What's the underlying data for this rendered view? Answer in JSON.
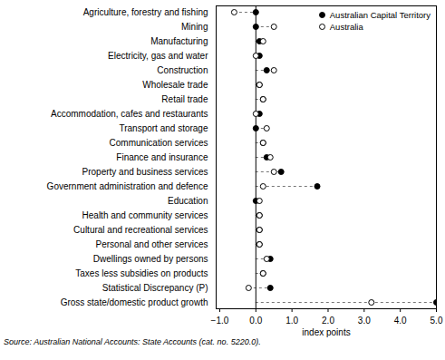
{
  "chart_data": {
    "type": "dot",
    "x_label": "index points",
    "caption": "Source: Australian National Accounts: State Accounts (cat. no. 5220.0).",
    "orientation": "horizontal",
    "legend": "top-right",
    "categories": [
      "Agriculture, forestry and fishing",
      "Mining",
      "Manufacturing",
      "Electricity, gas and water",
      "Construction",
      "Wholesale trade",
      "Retail trade",
      "Accommodation, cafes and restaurants",
      "Transport and storage",
      "Communication services",
      "Finance and insurance",
      "Property and business services",
      "Government administration and defence",
      "Education",
      "Health and community services",
      "Cultural and recreational services",
      "Personal and other services",
      "Dwellings owned by persons",
      "Taxes less subsidies on products",
      "Statistical Discrepancy (P)",
      "Gross state/domestic product growth"
    ],
    "series": [
      {
        "name": "Australian Capital Territory",
        "color": "#000000",
        "marker": "filled",
        "values": [
          0,
          0,
          0.1,
          0.1,
          0.3,
          0.1,
          0.2,
          0.1,
          0,
          0.2,
          0.3,
          0.7,
          1.7,
          0,
          0.1,
          0.1,
          0.1,
          0.4,
          0.2,
          0.4,
          5.0
        ]
      },
      {
        "name": "Australia",
        "color": "#000000",
        "marker": "open",
        "values": [
          -0.6,
          0.5,
          0.2,
          0,
          0.5,
          0.1,
          0.2,
          0,
          0.3,
          0.2,
          0.4,
          0.5,
          0.2,
          0.1,
          0.1,
          0.1,
          0.1,
          0.3,
          0.2,
          -0.2,
          3.2
        ]
      }
    ],
    "xlim": [
      -1.1,
      5
    ],
    "xticks": [
      -1,
      0,
      1,
      2,
      3,
      4,
      5
    ]
  }
}
